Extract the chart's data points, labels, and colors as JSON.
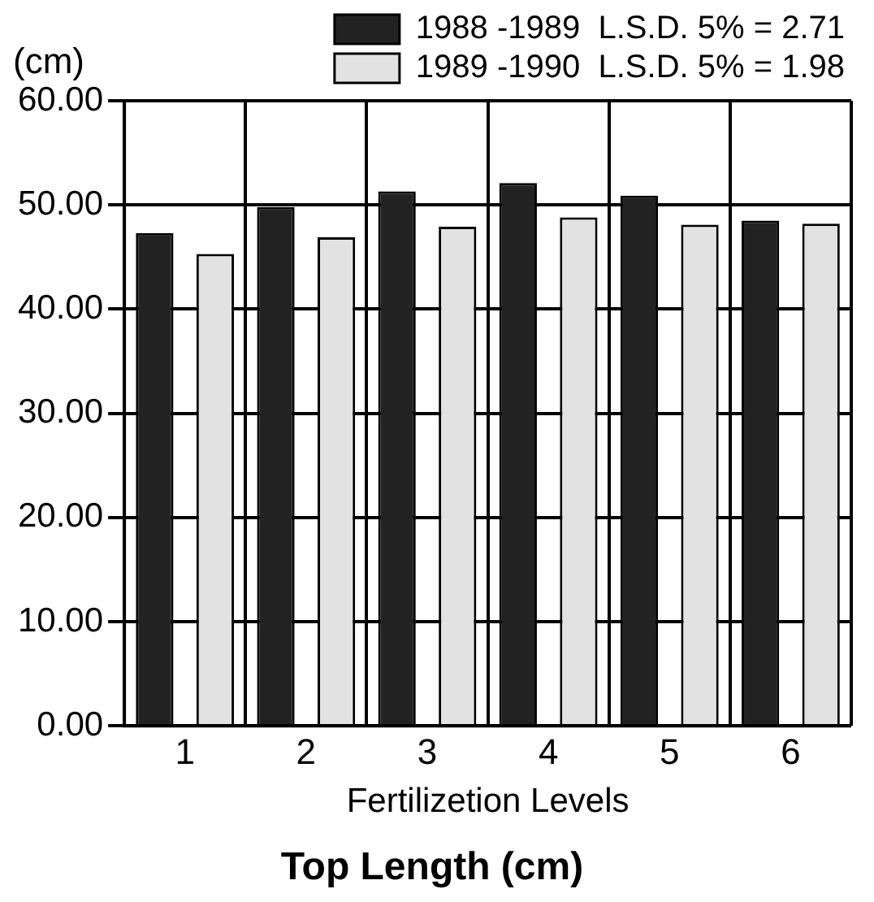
{
  "chart_data": {
    "type": "bar",
    "title": "Top Length (cm)",
    "xlabel": "Fertilizetion Levels",
    "ylabel": "(cm)",
    "categories": [
      "1",
      "2",
      "3",
      "4",
      "5",
      "6"
    ],
    "series": [
      {
        "name": "1988 -1989  L.S.D. 5% = 2.71",
        "color": "#222222",
        "values": [
          47.3,
          49.8,
          51.3,
          52.1,
          50.9,
          48.5
        ]
      },
      {
        "name": "1989 -1990  L.S.D. 5% = 1.98",
        "color": "#e2e2e2",
        "values": [
          45.3,
          46.9,
          47.9,
          48.8,
          48.1,
          48.2
        ]
      }
    ],
    "ylim": [
      0,
      60
    ],
    "yticks": [
      {
        "value": 0,
        "label": "0.00"
      },
      {
        "value": 10,
        "label": "10.00"
      },
      {
        "value": 20,
        "label": "20.00"
      },
      {
        "value": 30,
        "label": "30.00"
      },
      {
        "value": 40,
        "label": "40.00"
      },
      {
        "value": 50,
        "label": "50.00"
      },
      {
        "value": 60,
        "label": "60.00"
      }
    ],
    "grid": true,
    "legend": "top right"
  }
}
